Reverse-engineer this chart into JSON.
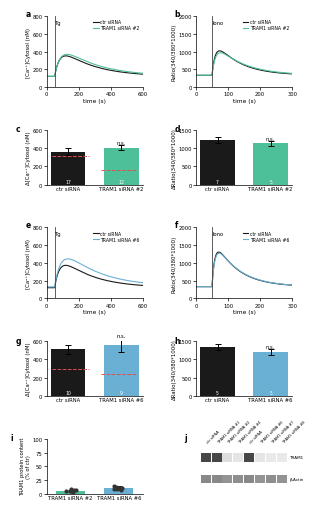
{
  "panel_a": {
    "tg_time": 50,
    "x_max": 600,
    "y_max": 800,
    "y_label": "[Ca²⁺]Cytosol (nM)",
    "x_label": "time (s)",
    "annotation": "Tg",
    "ctr_color": "#1a1a1a",
    "tram1_color": "#4dbf99",
    "legend": [
      "ctr siRNA",
      "TRAM1 siRNA #2"
    ]
  },
  "panel_b": {
    "iono_time": 50,
    "x_max": 300,
    "y_max": 2000,
    "y_label": "Ratio(340/380*1000)",
    "x_label": "time (s)",
    "annotation": "Iono",
    "ctr_color": "#1a1a1a",
    "tram1_color": "#4dbf99",
    "legend": [
      "ctr siRNA",
      "TRAM1 siRNA #2"
    ]
  },
  "panel_c": {
    "bars": [
      360,
      405
    ],
    "errors": [
      40,
      25
    ],
    "colors": [
      "#1a1a1a",
      "#4dbf99"
    ],
    "labels": [
      "ctr siRNA",
      "TRAM1 siRNA #2"
    ],
    "y_label": "Δ[Ca²⁺]Cytosol (nM)",
    "y_max": 600,
    "ns_text": "n.s.",
    "n_values": [
      17,
      12
    ],
    "ref_lines": [
      310,
      165
    ],
    "ref_color": "#e05050"
  },
  "panel_d": {
    "bars": [
      1230,
      1130
    ],
    "errors": [
      80,
      70
    ],
    "colors": [
      "#1a1a1a",
      "#4dbf99"
    ],
    "labels": [
      "ctr siRNA",
      "TRAM1 siRNA #2"
    ],
    "y_label": "ΔRatio(340/380*1000)",
    "y_max": 1500,
    "ns_text": "n.s.",
    "n_values": [
      7,
      5
    ],
    "ref_lines": null
  },
  "panel_e": {
    "tg_time": 50,
    "x_max": 600,
    "y_max": 800,
    "y_label": "[Ca²⁺]Cytosol (nM)",
    "x_label": "time (s)",
    "annotation": "Tg",
    "ctr_color": "#1a1a1a",
    "tram1_color": "#6ab0d4",
    "legend": [
      "ctr siRNA",
      "TRAM1 siRNA #6"
    ]
  },
  "panel_f": {
    "iono_time": 50,
    "x_max": 300,
    "y_max": 2000,
    "y_label": "Ratio(340/380*1000)",
    "x_label": "time (s)",
    "annotation": "Iono",
    "ctr_color": "#1a1a1a",
    "tram1_color": "#6ab0d4",
    "legend": [
      "ctr siRNA",
      "TRAM1 siRNA #6"
    ]
  },
  "panel_g": {
    "bars": [
      510,
      555
    ],
    "errors": [
      50,
      70
    ],
    "colors": [
      "#1a1a1a",
      "#6ab0d4"
    ],
    "labels": [
      "ctr siRNA",
      "TRAM1 siRNA #6"
    ],
    "y_label": "Δ[Ca²⁺]Cytosol (nM)",
    "y_max": 600,
    "ns_text": "n.s.",
    "n_values": [
      10,
      9
    ],
    "ref_lines": [
      300,
      240
    ],
    "ref_color": "#e05050"
  },
  "panel_h": {
    "bars": [
      1350,
      1200
    ],
    "errors": [
      80,
      90
    ],
    "colors": [
      "#1a1a1a",
      "#6ab0d4"
    ],
    "labels": [
      "ctr siRNA",
      "TRAM1 siRNA #6"
    ],
    "y_label": "ΔRatio(340/380*1000)",
    "y_max": 1500,
    "ns_text": "n.s.",
    "n_values": [
      5,
      5
    ],
    "ref_lines": null
  },
  "panel_i": {
    "bars": [
      5,
      10
    ],
    "errors": [
      1.5,
      3
    ],
    "bar_colors": [
      "#4dbf99",
      "#6ab0d4"
    ],
    "dots_tram1_2": [
      4,
      7,
      5,
      3,
      6,
      8,
      5
    ],
    "dots_tram1_6": [
      8,
      12,
      10,
      7,
      11,
      9,
      13
    ],
    "labels": [
      "TRAM1 siRNA #2",
      "TRAM1 siRNA #6"
    ],
    "y_label": "TRAM1 protein content\n(% of ctr)",
    "y_max": 100,
    "y_ticks": [
      0,
      25,
      50,
      75,
      100
    ],
    "dot_color": "#333333"
  },
  "panel_j": {
    "lane_labels": [
      "ctr siRNA",
      "TRAM1 siRNA #1",
      "TRAM1 siRNA #2",
      "TRAM1 siRNA #4",
      "ctr siRNA",
      "TRAM1 siRNA #6",
      "TRAM1 siRNA #7",
      "TRAM1 siRNA #8"
    ],
    "tram1_intensities": [
      0.85,
      0.85,
      0.15,
      0.12,
      0.85,
      0.12,
      0.1,
      0.1
    ],
    "actin_intensities": [
      0.55,
      0.55,
      0.5,
      0.52,
      0.55,
      0.5,
      0.52,
      0.5
    ],
    "bands": [
      "TRAM1",
      "β-Actin"
    ]
  }
}
